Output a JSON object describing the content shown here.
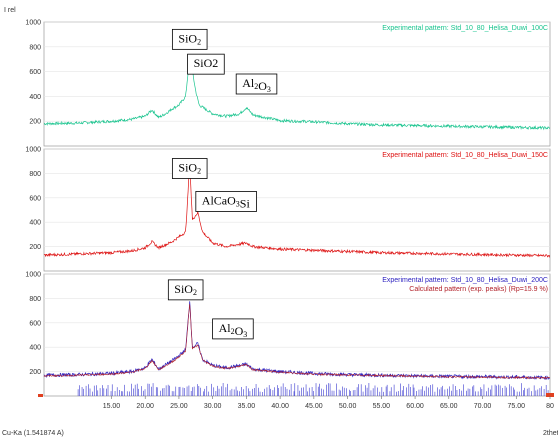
{
  "chart_data": {
    "type": "line",
    "y_axis_label": "I rel",
    "x_axis_label": "2theta",
    "wavelength_label": "Cu-Ka (1.541874 A)",
    "xlim": [
      5,
      80
    ],
    "x_ticks": [
      "15.00",
      "20.00",
      "25.00",
      "30.00",
      "35.00",
      "40.00",
      "45.00",
      "50.00",
      "55.00",
      "60.00",
      "65.00",
      "70.00",
      "75.00",
      "80"
    ],
    "panels": [
      {
        "ylim": [
          0,
          1000
        ],
        "y_ticks": [
          "200",
          "400",
          "600",
          "800",
          "1000"
        ],
        "legend": [
          "Experimental pattern: Std_10_80_Helisa_Duwi_100C"
        ],
        "series": [
          {
            "name": "Experimental pattern: Std_10_80_Helisa_Duwi_100C",
            "color": "#19c48e",
            "x": [
              5,
              10,
              15,
              18,
              20,
              21,
              22,
              23,
              24,
              25,
              26,
              26.6,
              27.5,
              28,
              30,
              32,
              34,
              35,
              36,
              40,
              45,
              50,
              55,
              60,
              65,
              70,
              75,
              80
            ],
            "y": [
              180,
              185,
              200,
              215,
              240,
              290,
              230,
              260,
              300,
              330,
              400,
              730,
              440,
              330,
              260,
              240,
              260,
              310,
              250,
              205,
              195,
              180,
              170,
              165,
              160,
              155,
              150,
              145
            ]
          }
        ],
        "annotations": [
          {
            "text": "SiO",
            "sub": "2",
            "x": 26.6,
            "y": 860
          },
          {
            "text": "SiO2",
            "sub": "",
            "x": 29.0,
            "y": 660
          },
          {
            "text": "Al",
            "sub": "2",
            "text2": "O",
            "sub2": "3",
            "x": 36.5,
            "y": 500
          }
        ]
      },
      {
        "ylim": [
          0,
          1000
        ],
        "y_ticks": [
          "200",
          "400",
          "600",
          "800",
          "1000"
        ],
        "legend": [
          "Experimental pattern: Std_10_80_Helisa_Duwi_150C"
        ],
        "series": [
          {
            "name": "Experimental pattern: Std_10_80_Helisa_Duwi_150C",
            "color": "#dd1111",
            "x": [
              5,
              10,
              15,
              18,
              20,
              21,
              22,
              24,
              25,
              26,
              26.6,
              27,
              27.8,
              28.5,
              30,
              32,
              35,
              36,
              40,
              45,
              50,
              55,
              60,
              65,
              70,
              75,
              80
            ],
            "y": [
              130,
              140,
              150,
              165,
              190,
              240,
              190,
              240,
              280,
              320,
              880,
              420,
              480,
              320,
              230,
              200,
              230,
              200,
              180,
              170,
              160,
              150,
              145,
              140,
              135,
              130,
              125
            ]
          }
        ],
        "annotations": [
          {
            "text": "SiO",
            "sub": "2",
            "x": 26.6,
            "y": 840
          },
          {
            "text": "AlCaO",
            "sub": "3",
            "text2": "Si",
            "sub2": "",
            "x": 32.0,
            "y": 570
          }
        ]
      },
      {
        "ylim": [
          0,
          1000
        ],
        "y_ticks": [
          "200",
          "400",
          "600",
          "800",
          "1000"
        ],
        "legend": [
          "Experimental pattern: Std_10_80_Helisa_Duwi_200C",
          "Calculated pattern (exp. peaks) (Rp=15.9 %)"
        ],
        "series": [
          {
            "name": "Experimental pattern: Std_10_80_Helisa_Duwi_200C",
            "color": "#2a1fbf",
            "x": [
              5,
              10,
              15,
              18,
              20,
              21,
              22,
              24,
              25,
              26,
              26.6,
              27,
              27.8,
              28.5,
              30,
              32,
              35,
              36,
              40,
              45,
              50,
              55,
              60,
              65,
              70,
              75,
              80
            ],
            "y": [
              170,
              175,
              185,
              200,
              230,
              300,
              220,
              290,
              330,
              380,
              780,
              400,
              430,
              300,
              250,
              230,
              260,
              220,
              200,
              185,
              175,
              170,
              165,
              160,
              158,
              155,
              150
            ]
          },
          {
            "name": "Calculated pattern (exp. peaks) (Rp=15.9 %)",
            "color": "#b2222a",
            "x": [
              5,
              10,
              15,
              18,
              20,
              21,
              22,
              24,
              25,
              26,
              26.6,
              27,
              27.8,
              28.5,
              30,
              32,
              35,
              36,
              40,
              45,
              50,
              55,
              60,
              65,
              70,
              75,
              80
            ],
            "y": [
              165,
              170,
              180,
              195,
              225,
              290,
              215,
              280,
              320,
              370,
              760,
              390,
              420,
              295,
              245,
              225,
              255,
              215,
              195,
              180,
              172,
              168,
              162,
              158,
              155,
              152,
              148
            ]
          }
        ],
        "annotations": [
          {
            "text": "SiO",
            "sub": "2",
            "x": 26.0,
            "y": 870
          },
          {
            "text": "Al",
            "sub": "2",
            "text2": "O",
            "sub2": "3",
            "x": 33.0,
            "y": 550
          }
        ]
      }
    ]
  }
}
